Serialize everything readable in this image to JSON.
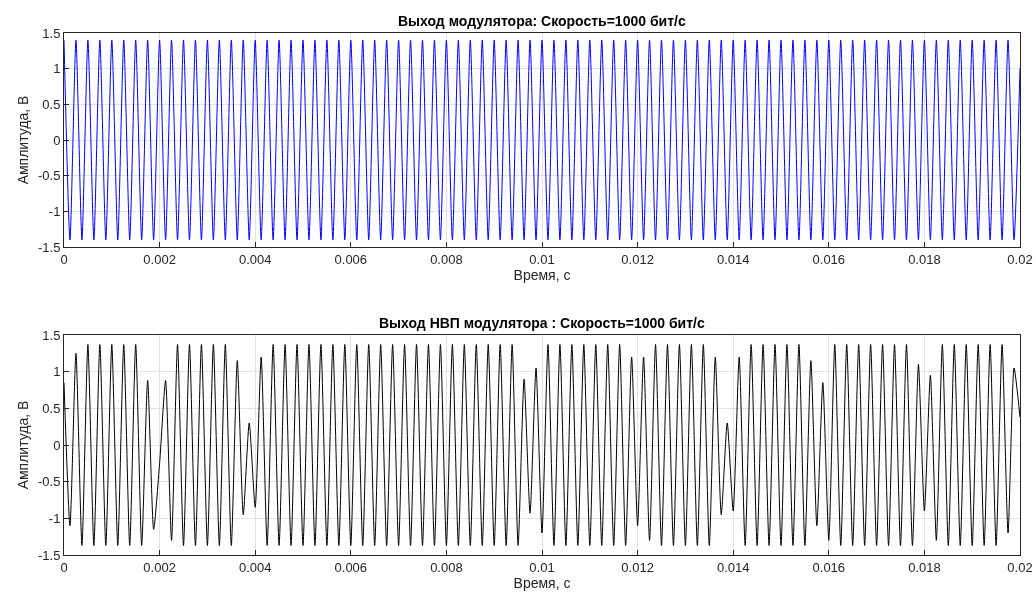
{
  "chart_data": [
    {
      "type": "line",
      "title": "Выход модулятора: Скорость=1000 бит/с",
      "xlabel": "Время, с",
      "ylabel": "Амплитуда, В",
      "x": [
        0,
        0.000125,
        0.00025,
        0.000375,
        0.0005,
        0.000625,
        0.00075,
        0.000875,
        0.001,
        0.001125,
        0.00125,
        0.001375,
        0.0015,
        0.001625,
        0.00175,
        0.001875,
        0.002,
        0.002125,
        0.00225,
        0.002375,
        0.0025,
        0.002625,
        0.00275,
        0.002875,
        0.003,
        0.003125,
        0.00325,
        0.003375,
        0.0035,
        0.003625,
        0.00375,
        0.003875,
        0.004,
        0.004125,
        0.00425,
        0.004375,
        0.0045,
        0.004625,
        0.00475,
        0.004875,
        0.005,
        0.005125,
        0.00525,
        0.005375,
        0.0055,
        0.005625,
        0.00575,
        0.005875,
        0.006,
        0.006125,
        0.00625,
        0.006375,
        0.0065,
        0.006625,
        0.00675,
        0.006875,
        0.007,
        0.007125,
        0.00725,
        0.007375,
        0.0075,
        0.007625,
        0.00775,
        0.007875,
        0.008,
        0.008125,
        0.00825,
        0.008375,
        0.0085,
        0.008625,
        0.00875,
        0.008875,
        0.009,
        0.009125,
        0.00925,
        0.009375,
        0.0095,
        0.009625,
        0.00975,
        0.009875,
        0.01,
        0.010125,
        0.01025,
        0.010375,
        0.0105,
        0.010625,
        0.01075,
        0.010875,
        0.011,
        0.011125,
        0.01125,
        0.011375,
        0.0115,
        0.011625,
        0.01175,
        0.011875,
        0.012,
        0.012125,
        0.01225,
        0.012375,
        0.0125,
        0.012625,
        0.01275,
        0.012875,
        0.013,
        0.013125,
        0.01325,
        0.013375,
        0.0135,
        0.013625,
        0.01375,
        0.013875,
        0.014,
        0.014125,
        0.01425,
        0.014375,
        0.0145,
        0.014625,
        0.01475,
        0.014875,
        0.015,
        0.015125,
        0.01525,
        0.015375,
        0.0155,
        0.015625,
        0.01575,
        0.015875,
        0.016,
        0.016125,
        0.01625,
        0.016375,
        0.0165,
        0.016625,
        0.01675,
        0.016875,
        0.017,
        0.017125,
        0.01725,
        0.017375,
        0.0175,
        0.017625,
        0.01775,
        0.017875,
        0.018,
        0.018125,
        0.01825,
        0.018375,
        0.0185,
        0.018625,
        0.01875,
        0.018875,
        0.019,
        0.019125,
        0.01925,
        0.019375,
        0.0195,
        0.019625,
        0.01975,
        0.019875,
        0.02
      ],
      "series": [
        {
          "color": "#0000ff",
          "values": [
            1.4,
            -1.4,
            1.4,
            -1.4,
            1.4,
            -1.4,
            1.4,
            -1.4,
            1.4,
            -1.4,
            1.4,
            -1.4,
            1.4,
            -1.4,
            1.4,
            -1.4,
            1.4,
            -1.4,
            1.4,
            -1.4,
            1.4,
            -1.4,
            1.4,
            -1.4,
            1.4,
            -1.4,
            1.4,
            -1.4,
            1.4,
            -1.4,
            1.4,
            -1.4,
            1.4,
            -1.4,
            1.4,
            -1.4,
            1.4,
            -1.4,
            1.4,
            -1.4,
            1.4,
            -1.4,
            1.4,
            -1.4,
            1.4,
            -1.4,
            1.4,
            -1.4,
            1.4,
            -1.4,
            1.4,
            -1.4,
            1.4,
            -1.4,
            1.4,
            -1.4,
            1.4,
            -1.4,
            1.4,
            -1.4,
            1.4,
            -1.4,
            1.4,
            -1.4,
            1.4,
            -1.4,
            1.4,
            -1.4,
            1.4,
            -1.4,
            1.4,
            -1.4,
            1.4,
            -1.4,
            1.4,
            -1.4,
            1.4,
            -1.4,
            1.4,
            -1.4,
            1.4,
            -1.4,
            1.4,
            -1.4,
            1.4,
            -1.4,
            1.4,
            -1.4,
            1.4,
            -1.4,
            1.4,
            -1.4,
            1.4,
            -1.4,
            1.4,
            -1.4,
            1.4,
            -1.4,
            1.4,
            -1.4,
            1.4,
            -1.4,
            1.4,
            -1.4,
            1.4,
            -1.4,
            1.4,
            -1.4,
            1.4,
            -1.4,
            1.4,
            -1.4,
            1.4,
            -1.4,
            1.4,
            -1.4,
            1.4,
            -1.4,
            1.4,
            -1.4,
            1.4,
            -1.4,
            1.4,
            -1.4,
            1.4,
            -1.4,
            1.4,
            -1.4,
            1.4,
            -1.4,
            1.4,
            -1.4,
            1.4,
            -1.4,
            1.4,
            -1.4,
            1.4,
            -1.4,
            1.4,
            -1.4,
            1.4,
            -1.4,
            1.4,
            -1.4,
            1.4,
            -1.4,
            1.4,
            -1.4,
            1.4,
            -1.4,
            1.4,
            -1.4,
            1.4,
            -1.4,
            1.4,
            -1.4,
            1.4,
            -1.4,
            1.4,
            -1.4,
            1.0
          ]
        }
      ],
      "xlim": [
        0,
        0.02
      ],
      "xticks": [
        0,
        0.002,
        0.004,
        0.006,
        0.008,
        0.01,
        0.012,
        0.014,
        0.016,
        0.018,
        0.02
      ],
      "ylim": [
        -1.5,
        1.5
      ],
      "yticks": [
        -1.5,
        -1,
        -0.5,
        0,
        0.5,
        1,
        1.5
      ],
      "grid": true
    },
    {
      "type": "line",
      "title": "Выход НВП модулятора : Скорость=1000 бит/с",
      "xlabel": "Время, с",
      "ylabel": "Амплитуда, В",
      "x": [
        0,
        0.000125,
        0.00025,
        0.000375,
        0.0005,
        0.000625,
        0.00075,
        0.000875,
        0.001,
        0.001125,
        0.00125,
        0.001375,
        0.0015,
        0.001625,
        0.00175,
        0.001875,
        0.002,
        0.002125,
        0.00225,
        0.002375,
        0.0025,
        0.002625,
        0.00275,
        0.002875,
        0.003,
        0.003125,
        0.00325,
        0.003375,
        0.0035,
        0.003625,
        0.00375,
        0.003875,
        0.004,
        0.004125,
        0.00425,
        0.004375,
        0.0045,
        0.004625,
        0.00475,
        0.004875,
        0.005,
        0.005125,
        0.00525,
        0.005375,
        0.0055,
        0.005625,
        0.00575,
        0.005875,
        0.006,
        0.006125,
        0.00625,
        0.006375,
        0.0065,
        0.006625,
        0.00675,
        0.006875,
        0.007,
        0.007125,
        0.00725,
        0.007375,
        0.0075,
        0.007625,
        0.00775,
        0.007875,
        0.008,
        0.008125,
        0.00825,
        0.008375,
        0.0085,
        0.008625,
        0.00875,
        0.008875,
        0.009,
        0.009125,
        0.00925,
        0.009375,
        0.0095,
        0.009625,
        0.00975,
        0.009875,
        0.01,
        0.010125,
        0.01025,
        0.010375,
        0.0105,
        0.010625,
        0.01075,
        0.010875,
        0.011,
        0.011125,
        0.01125,
        0.011375,
        0.0115,
        0.011625,
        0.01175,
        0.011875,
        0.012,
        0.012125,
        0.01225,
        0.012375,
        0.0125,
        0.012625,
        0.01275,
        0.012875,
        0.013,
        0.013125,
        0.01325,
        0.013375,
        0.0135,
        0.013625,
        0.01375,
        0.013875,
        0.014,
        0.014125,
        0.01425,
        0.014375,
        0.0145,
        0.014625,
        0.01475,
        0.014875,
        0.015,
        0.015125,
        0.01525,
        0.015375,
        0.0155,
        0.015625,
        0.01575,
        0.015875,
        0.016,
        0.016125,
        0.01625,
        0.016375,
        0.0165,
        0.016625,
        0.01675,
        0.016875,
        0.017,
        0.017125,
        0.01725,
        0.017375,
        0.0175,
        0.017625,
        0.01775,
        0.017875,
        0.018,
        0.018125,
        0.01825,
        0.018375,
        0.0185,
        0.018625,
        0.01875,
        0.018875,
        0.019,
        0.019125,
        0.01925,
        0.019375,
        0.0195,
        0.019625,
        0.01975,
        0.019875,
        0.02
      ],
      "series": [
        {
          "color": "#000000",
          "values": [
            0.85,
            -1.1,
            1.25,
            -1.37,
            1.37,
            -1.37,
            1.37,
            -1.37,
            1.37,
            -1.37,
            1.37,
            -1.37,
            1.37,
            -1.37,
            0.88,
            -1.15,
            -0.25,
            0.88,
            -1.3,
            1.37,
            -1.37,
            1.37,
            -1.37,
            1.37,
            -1.37,
            1.37,
            -1.37,
            1.37,
            -1.37,
            1.15,
            -0.95,
            0.3,
            -0.85,
            1.2,
            -1.37,
            1.37,
            -1.37,
            1.37,
            -1.37,
            1.37,
            -1.37,
            1.37,
            -1.37,
            1.37,
            -1.37,
            1.37,
            -1.37,
            1.37,
            -1.37,
            1.37,
            -1.37,
            1.37,
            -1.37,
            1.37,
            -1.37,
            1.37,
            -1.37,
            1.37,
            -1.37,
            1.37,
            -1.37,
            1.37,
            -1.37,
            1.37,
            -1.37,
            1.37,
            -1.37,
            1.37,
            -1.37,
            1.37,
            -1.37,
            1.37,
            -1.37,
            1.37,
            -1.37,
            1.37,
            -1.37,
            0.9,
            -0.93,
            1.05,
            -1.2,
            1.37,
            -1.37,
            1.37,
            -1.37,
            1.37,
            -1.37,
            1.37,
            -1.37,
            1.37,
            -1.37,
            1.37,
            -1.37,
            1.37,
            -1.37,
            1.2,
            -1.1,
            1.2,
            -1.3,
            1.37,
            -1.37,
            1.37,
            -1.37,
            1.37,
            -1.37,
            1.37,
            -1.37,
            1.37,
            -1.37,
            1.2,
            -0.95,
            0.3,
            -0.9,
            1.2,
            -1.37,
            1.37,
            -1.37,
            1.37,
            -1.37,
            1.37,
            -1.37,
            1.37,
            -1.37,
            1.37,
            -1.37,
            1.15,
            -1.1,
            0.85,
            -1.3,
            1.37,
            -1.37,
            1.37,
            -1.37,
            1.37,
            -1.37,
            1.37,
            -1.37,
            1.37,
            -1.37,
            1.37,
            -1.37,
            1.37,
            -1.37,
            1.1,
            -0.9,
            0.95,
            -1.3,
            1.37,
            -1.37,
            1.37,
            -1.37,
            1.37,
            -1.37,
            1.37,
            -1.37,
            1.37,
            -1.37,
            1.37,
            -1.2,
            1.05,
            0.38
          ]
        }
      ],
      "xlim": [
        0,
        0.02
      ],
      "xticks": [
        0,
        0.002,
        0.004,
        0.006,
        0.008,
        0.01,
        0.012,
        0.014,
        0.016,
        0.018,
        0.02
      ],
      "ylim": [
        -1.5,
        1.5
      ],
      "yticks": [
        -1.5,
        -1,
        -0.5,
        0,
        0.5,
        1,
        1.5
      ],
      "grid": true
    }
  ]
}
